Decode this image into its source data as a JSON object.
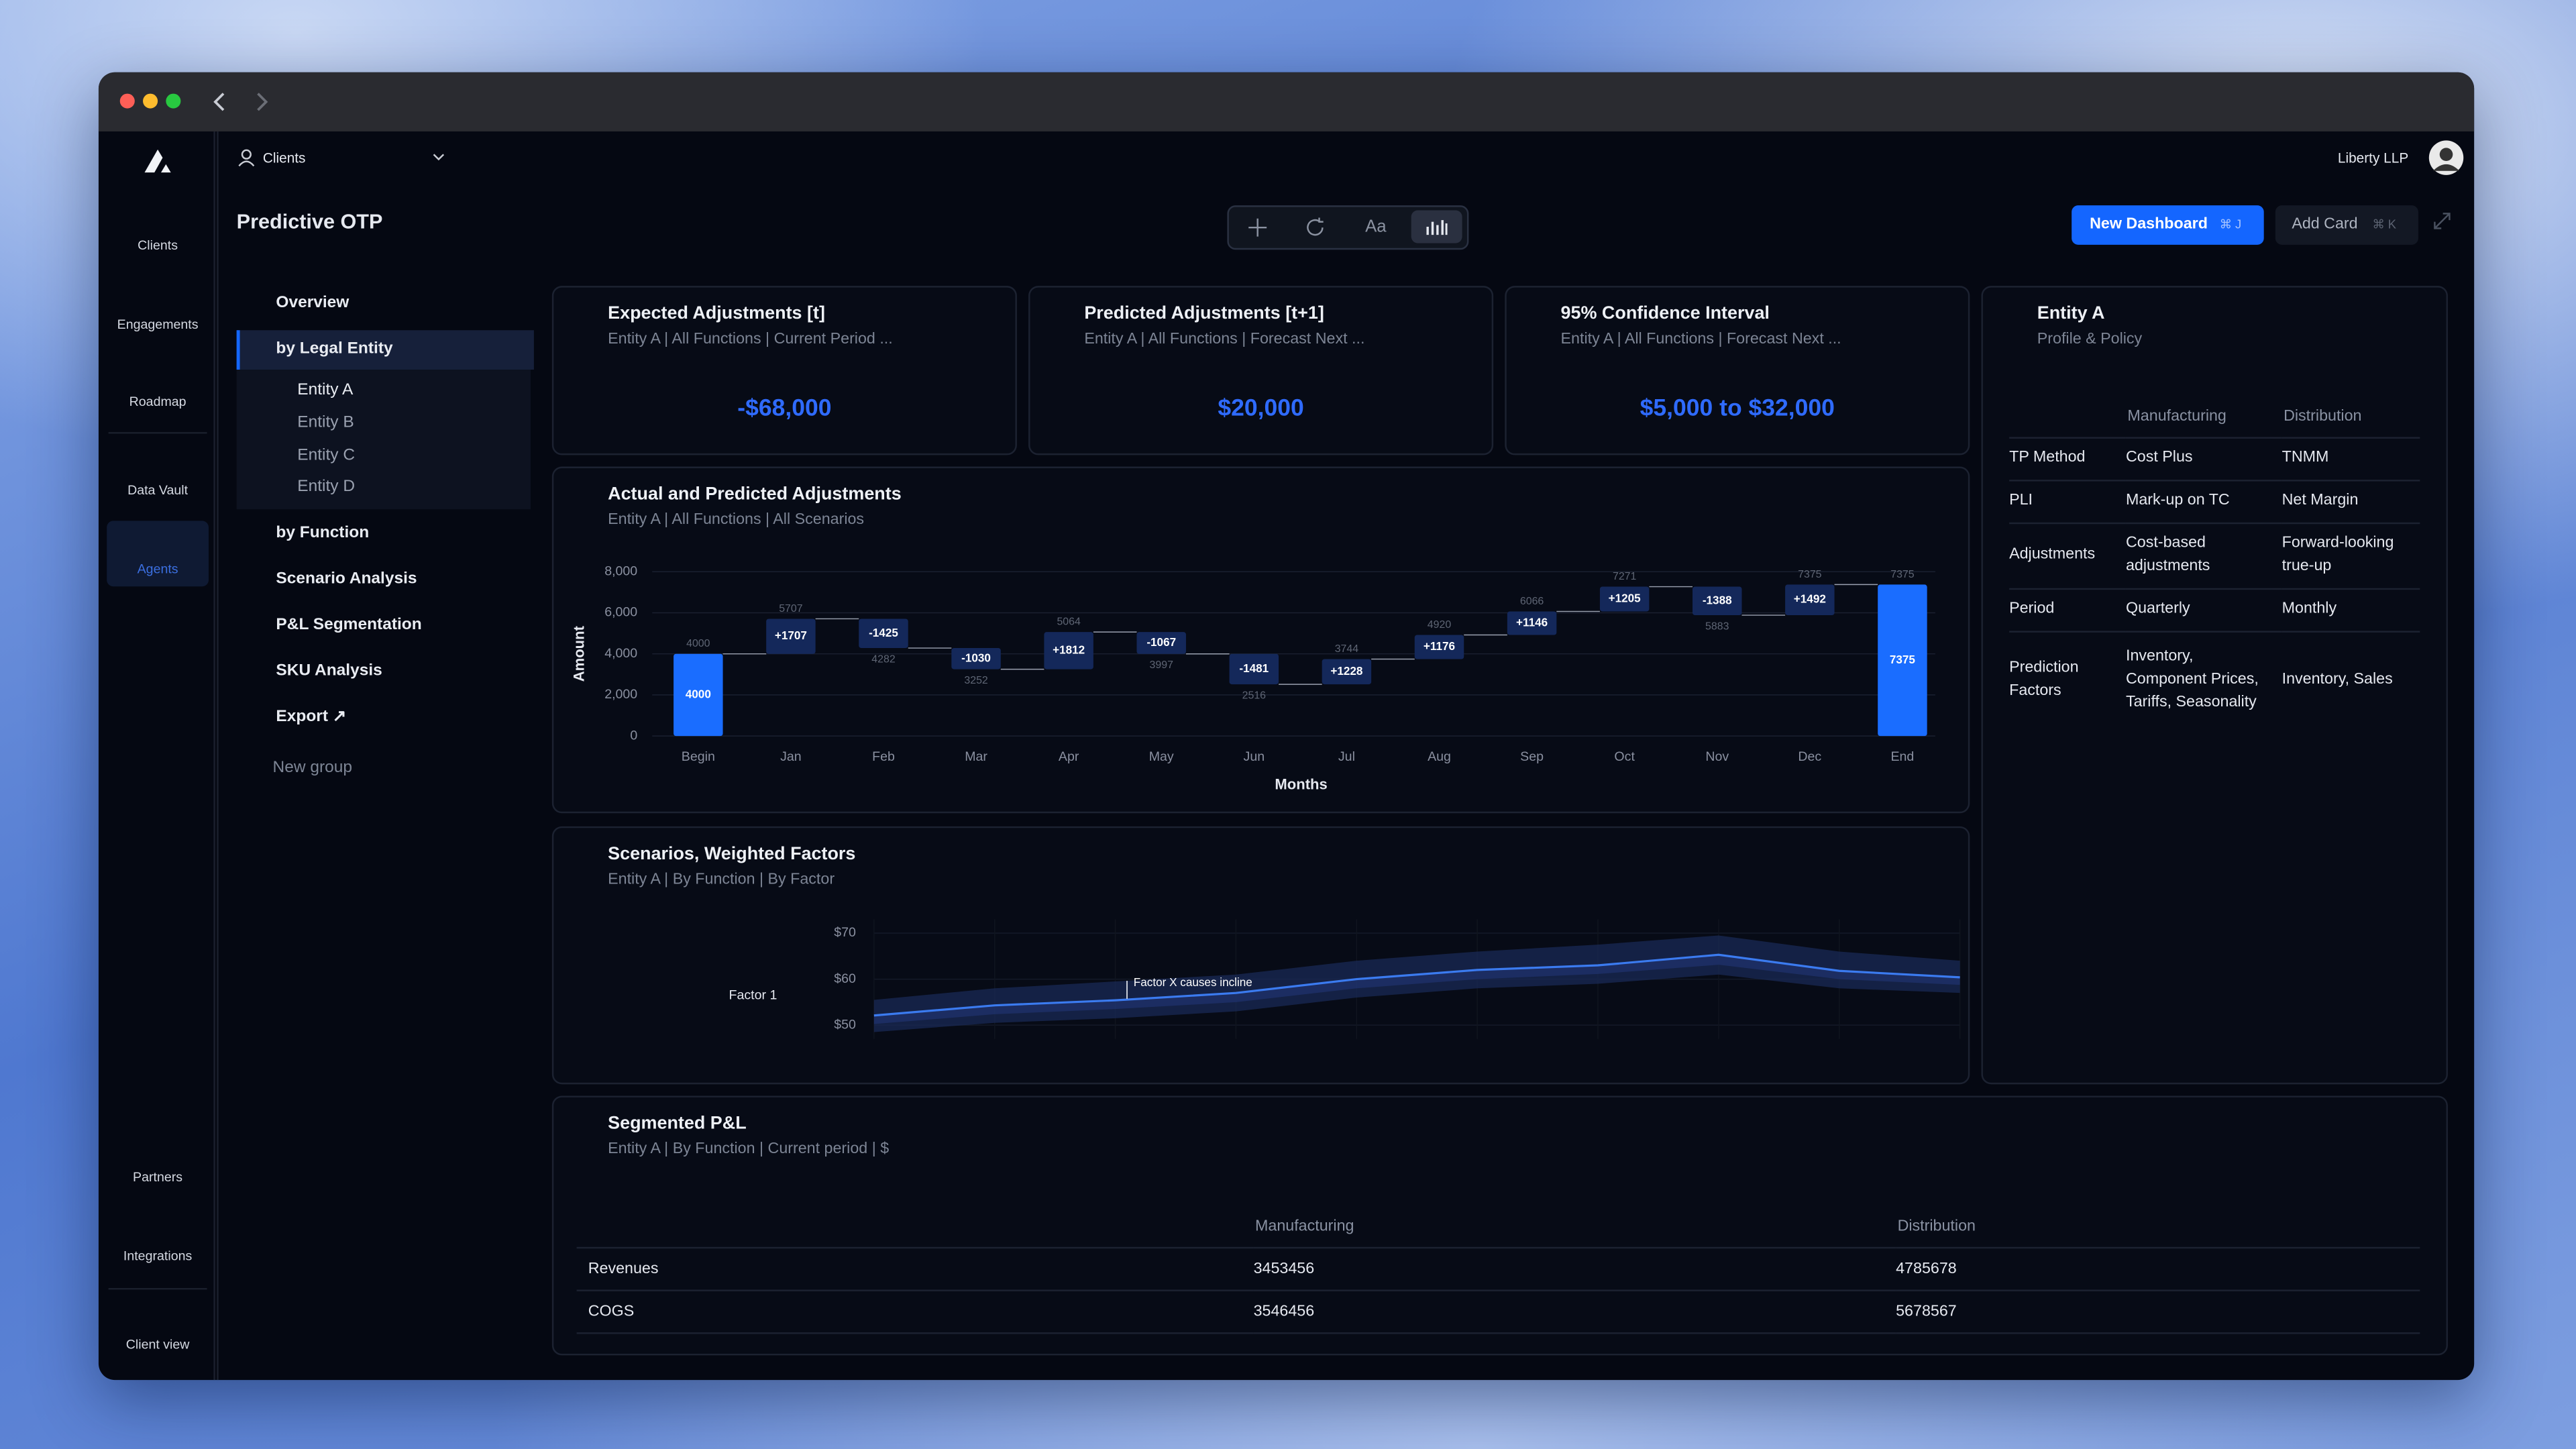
{
  "sidebar": {
    "items": [
      "Clients",
      "Engagements",
      "Roadmap",
      "Data Vault",
      "Agents"
    ],
    "bottom_items": [
      "Partners",
      "Integrations",
      "Client view"
    ]
  },
  "topbar": {
    "client_selector": "Clients",
    "org": "Liberty LLP"
  },
  "page": {
    "title": "Predictive OTP",
    "toolbar_text": "Aa",
    "new_dashboard": "New Dashboard",
    "new_dashboard_shortcut": "⌘ J",
    "add_card": "Add Card",
    "add_card_shortcut": "⌘ K"
  },
  "tree": {
    "groups": [
      {
        "label": "Overview"
      },
      {
        "label": "by Legal Entity",
        "children": [
          "Entity A",
          "Entity B",
          "Entity C",
          "Entity D"
        ]
      },
      {
        "label": "by Function"
      },
      {
        "label": "Scenario Analysis"
      },
      {
        "label": "P&L Segmentation"
      },
      {
        "label": "SKU Analysis"
      },
      {
        "label": "Export ↗"
      }
    ],
    "new_group": "New group"
  },
  "kpis": [
    {
      "title": "Expected Adjustments [t]",
      "subtitle": "Entity A | All Functions | Current Period ...",
      "value": "-$68,000"
    },
    {
      "title": "Predicted Adjustments [t+1]",
      "subtitle": "Entity A | All Functions | Forecast Next ...",
      "value": "$20,000"
    },
    {
      "title": "95% Confidence Interval",
      "subtitle": "Entity A | All Functions | Forecast Next ...",
      "value": "$5,000 to $32,000"
    }
  ],
  "entity_card": {
    "title": "Entity A",
    "subtitle": "Profile & Policy",
    "columns": [
      "Manufacturing",
      "Distribution"
    ],
    "rows": [
      [
        "TP Method",
        "Cost Plus",
        "TNMM"
      ],
      [
        "PLI",
        "Mark-up on TC",
        "Net Margin"
      ],
      [
        "Adjustments",
        "Cost-based adjustments",
        "Forward-looking true-up"
      ],
      [
        "Period",
        "Quarterly",
        "Monthly"
      ],
      [
        "Prediction Factors",
        "Inventory, Component Prices, Tariffs, Seasonality",
        "Inventory, Sales"
      ]
    ]
  },
  "pnl": {
    "title": "Segmented P&L",
    "subtitle": "Entity A | By Function | Current period | $",
    "columns": [
      "Manufacturing",
      "Distribution"
    ],
    "rows": [
      [
        "Revenues",
        3453456,
        4785678
      ],
      [
        "COGS",
        3546456,
        5678567
      ]
    ]
  },
  "chart_data": [
    {
      "type": "waterfall",
      "title": "Actual and Predicted Adjustments",
      "subtitle": "Entity A | All Functions | All Scenarios",
      "x_label": "Months",
      "y_label": "Amount",
      "categories": [
        "Begin",
        "Jan",
        "Feb",
        "Mar",
        "Apr",
        "May",
        "Jun",
        "Jul",
        "Aug",
        "Sep",
        "Oct",
        "Nov",
        "Dec",
        "End"
      ],
      "values": [
        4000,
        1707,
        -1425,
        -1030,
        1812,
        -1067,
        -1481,
        1228,
        1176,
        1146,
        1205,
        -1388,
        1492,
        7375
      ],
      "value_labels": [
        "4000",
        "+1707",
        "-1425",
        "-1030",
        "+1812",
        "-1067",
        "-1481",
        "+1228",
        "+1176",
        "+1146",
        "+1205",
        "-1388",
        "+1492",
        "7375"
      ],
      "totals": [
        4000,
        5707,
        4282,
        3252,
        5064,
        3997,
        2516,
        3744,
        4920,
        6066,
        7271,
        5883,
        7375,
        7375
      ],
      "total_color": "#1a6dff",
      "delta_color": "#14285a",
      "ylim": [
        0,
        8000
      ],
      "yticks": [
        0,
        {
          "value": 2000,
          "label": "2,000"
        },
        {
          "value": 4000,
          "label": "4,000"
        },
        {
          "value": 6000,
          "label": "6,000"
        },
        {
          "value": 8000,
          "label": "8,000"
        }
      ],
      "grid": true
    },
    {
      "type": "band-line",
      "title": "Scenarios, Weighted Factors",
      "subtitle": "Entity A | By Function | By Factor",
      "categories": [
        null,
        null,
        null,
        null,
        null,
        null,
        null,
        null,
        null,
        null
      ],
      "series": [
        {
          "name": "Factor 1",
          "color": "#3b7bf0",
          "values": [
            52.1,
            54.3,
            55.4,
            57,
            60,
            62,
            63,
            65.3,
            61.8,
            60.4
          ],
          "lower": [
            48.5,
            50.5,
            51.5,
            53,
            56,
            58,
            59,
            61,
            58,
            57
          ],
          "upper": [
            55.5,
            58,
            59.5,
            61,
            64,
            66,
            67.5,
            69.5,
            66,
            64
          ]
        }
      ],
      "annotation": "Factor X causes incline",
      "ylim": [
        47,
        73
      ],
      "yticks": [
        {
          "value": 50,
          "label": "$50"
        },
        {
          "value": 60,
          "label": "$60"
        },
        {
          "value": 70,
          "label": "$70"
        }
      ]
    }
  ]
}
